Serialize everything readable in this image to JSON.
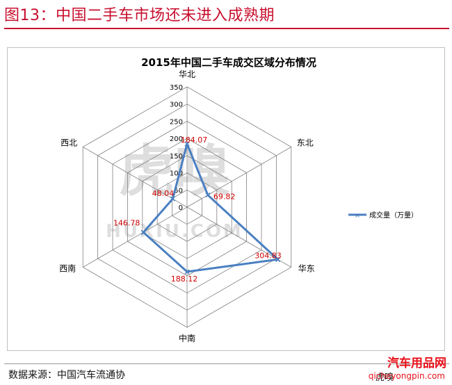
{
  "figure_title": "图13：中国二手车市场还未进入成熟期",
  "source_text": "数据来源：中国汽车流通协",
  "watermarks": {
    "center_logo": "虎嗅",
    "center_domain": "HUXIU.COM",
    "corner_logo": "汽车用品网",
    "corner_url": "qicheyongpin.com",
    "corner_brand": "虎嗅"
  },
  "colors": {
    "title_red": "#c8102e",
    "series_blue": "#4a7fc1",
    "data_label_red": "#d00000",
    "grid": "#808080"
  },
  "chart_data": {
    "type": "radar",
    "title": "2015年中国二手车成交区域分布情况",
    "categories": [
      "华北",
      "东北",
      "华东",
      "中南",
      "西南",
      "西北"
    ],
    "series": [
      {
        "name": "成交量（万量）",
        "values": [
          184.07,
          69.82,
          304.83,
          188.12,
          146.78,
          48.04
        ]
      }
    ],
    "value_labels": [
      "184.07",
      "69.82",
      "304.83",
      "188.12",
      "146.78",
      "48.04"
    ],
    "rlim": [
      0,
      350
    ],
    "ticks": [
      0,
      50,
      100,
      150,
      200,
      250,
      300,
      350
    ],
    "tick_labels": [
      "0",
      "50",
      "100",
      "150",
      "200",
      "250",
      "300",
      "350"
    ],
    "grid": true,
    "legend_position": "right"
  }
}
